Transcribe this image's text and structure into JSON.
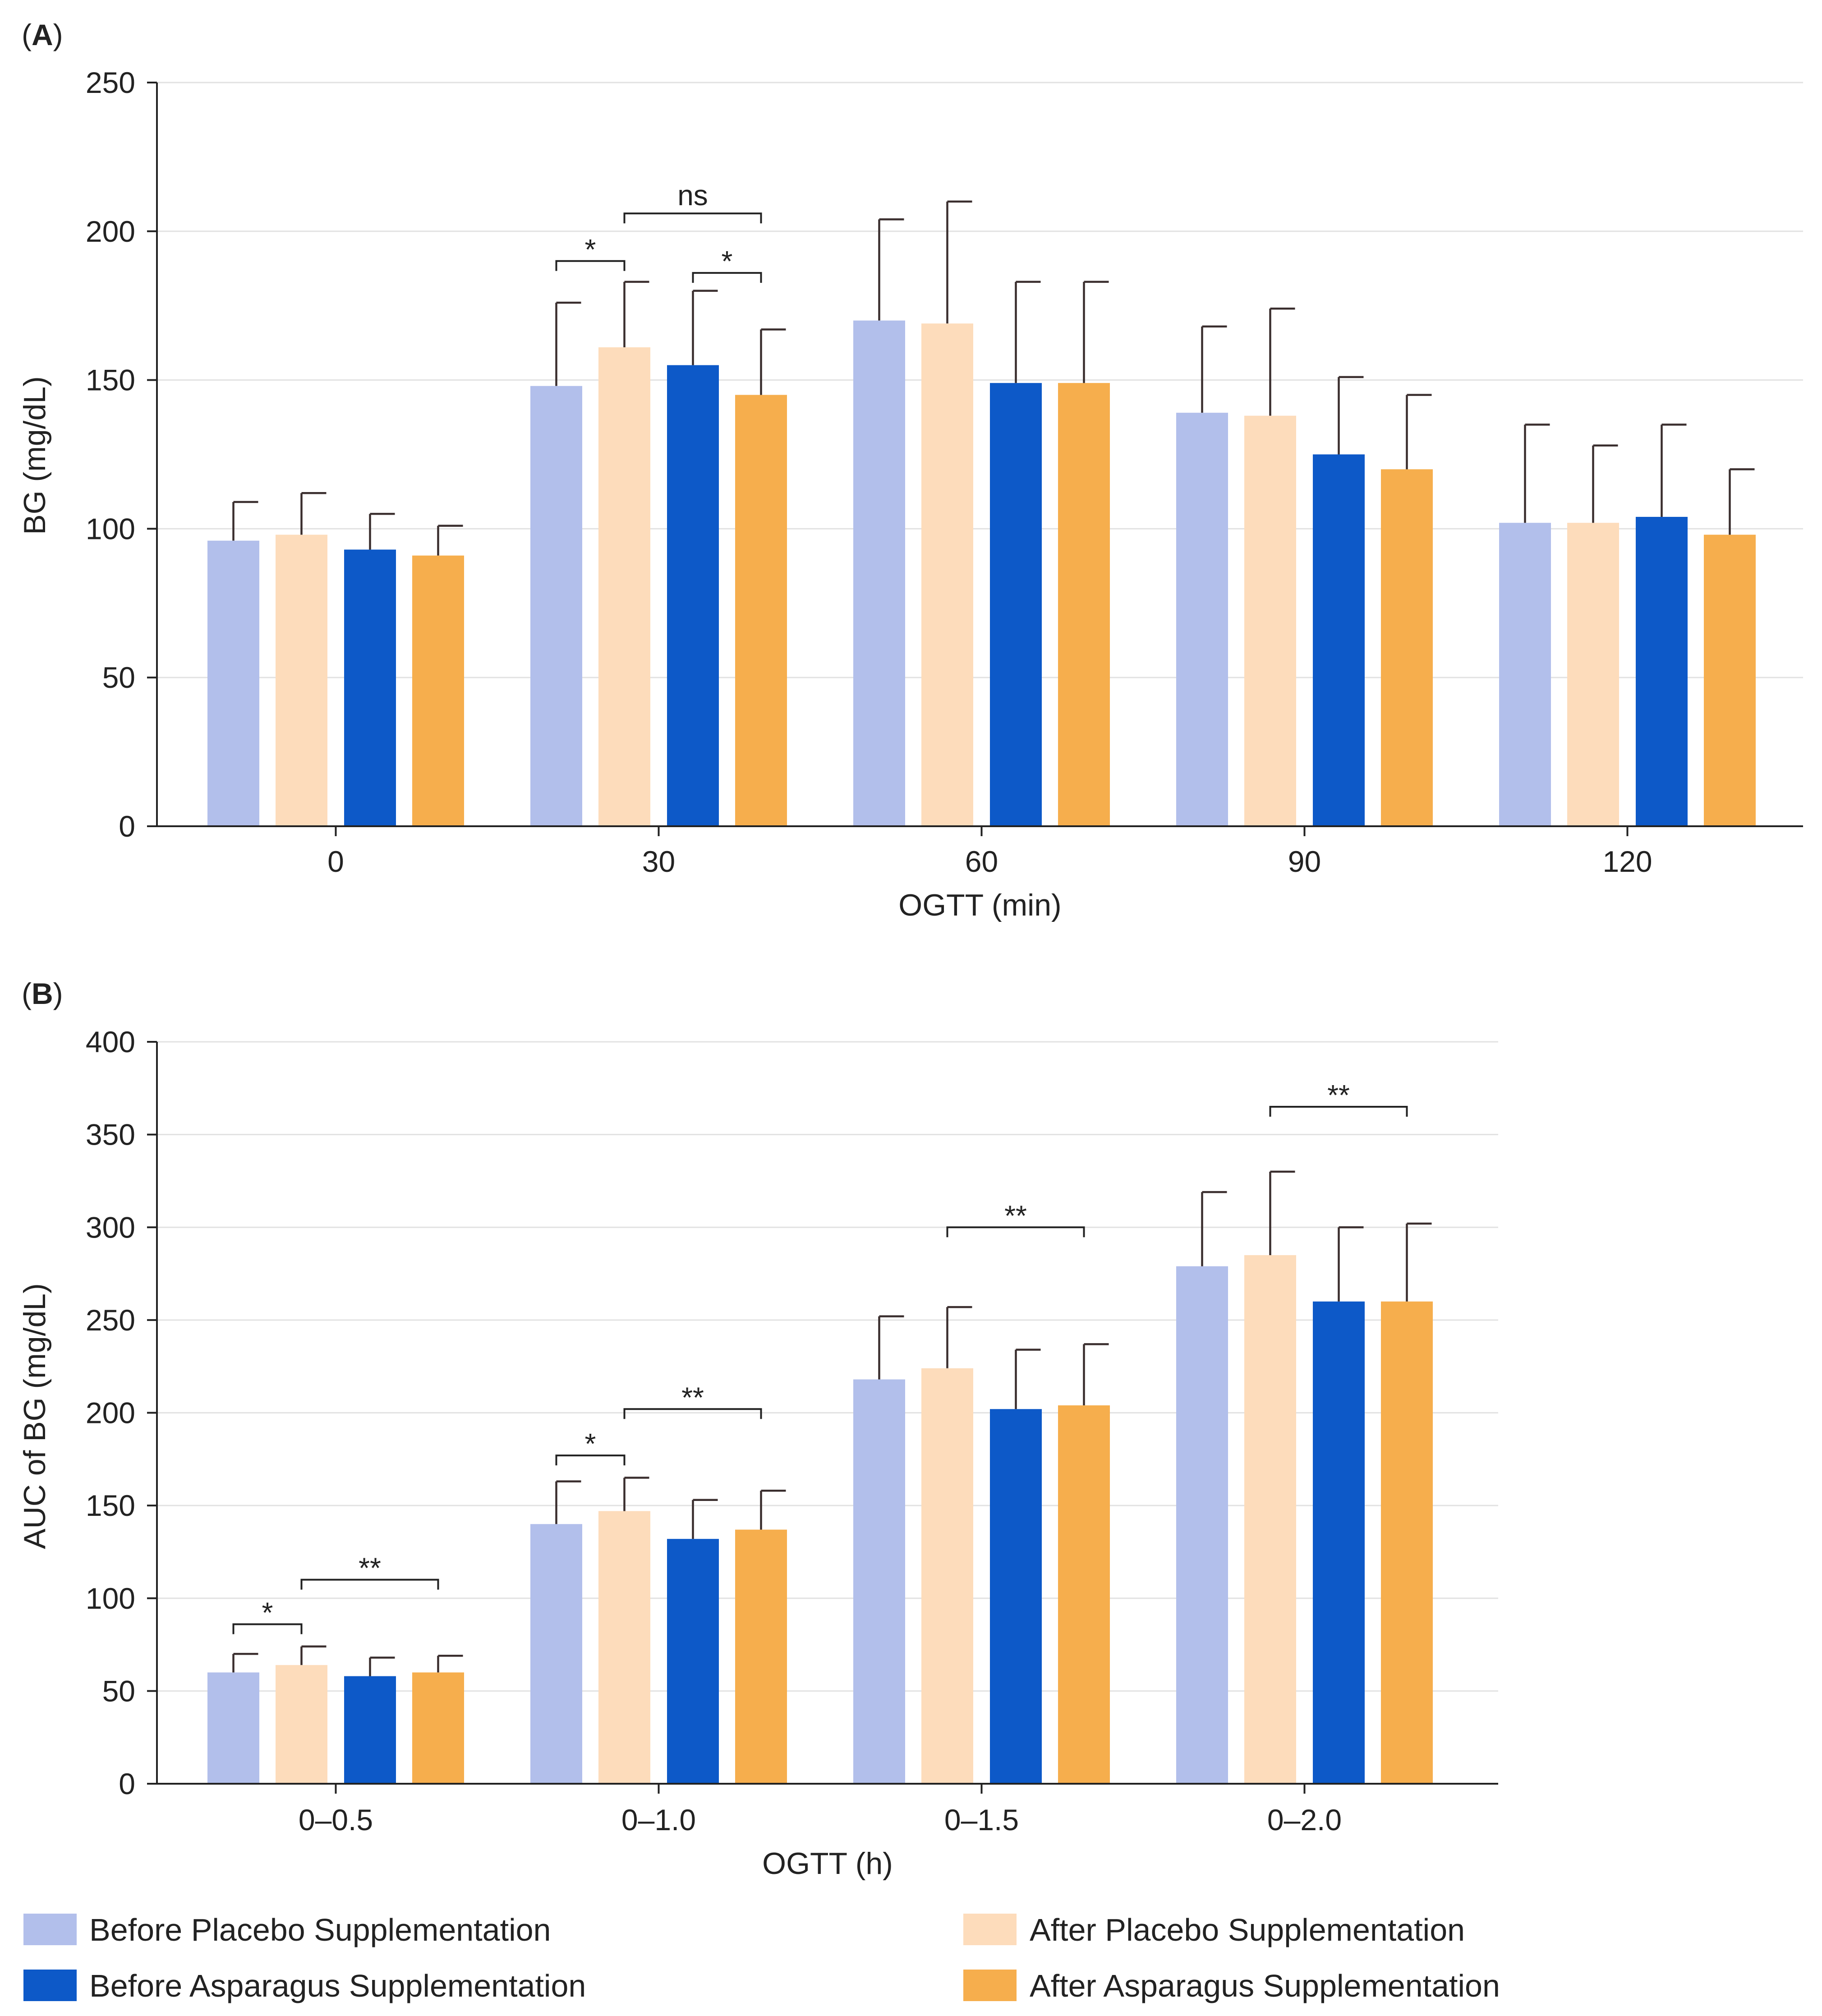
{
  "legend": {
    "items": [
      {
        "label": "Before Placebo Supplementation",
        "color": "#b2bfeb"
      },
      {
        "label": "After Placebo Supplementation",
        "color": "#fddcbb"
      },
      {
        "label": "Before Asparagus Supplementation",
        "color": "#0d59c8"
      },
      {
        "label": "After Asparagus Supplementation",
        "color": "#f6ae4d"
      }
    ]
  },
  "chart_data": [
    {
      "panel": "A",
      "type": "bar",
      "title": "",
      "xlabel": "OGTT (min)",
      "ylabel": "BG (mg/dL)",
      "ylim": [
        0,
        250
      ],
      "yticks": [
        0,
        50,
        100,
        150,
        200,
        250
      ],
      "grid": true,
      "categories": [
        "0",
        "30",
        "60",
        "90",
        "120"
      ],
      "series": [
        {
          "name": "Before Placebo Supplementation",
          "color": "#b2bfeb",
          "values": [
            96,
            148,
            170,
            139,
            102
          ],
          "errors": [
            13,
            28,
            34,
            29,
            33
          ]
        },
        {
          "name": "After Placebo Supplementation",
          "color": "#fddcbb",
          "values": [
            98,
            161,
            169,
            138,
            102
          ],
          "errors": [
            14,
            22,
            41,
            36,
            26
          ]
        },
        {
          "name": "Before Asparagus Supplementation",
          "color": "#0d59c8",
          "values": [
            93,
            155,
            149,
            125,
            104
          ],
          "errors": [
            12,
            25,
            34,
            26,
            31
          ]
        },
        {
          "name": "After Asparagus Supplementation",
          "color": "#f6ae4d",
          "values": [
            91,
            145,
            149,
            120,
            98
          ],
          "errors": [
            10,
            22,
            34,
            25,
            22
          ]
        }
      ],
      "annotations": [
        {
          "category": 1,
          "from_series": 0,
          "to_series": 1,
          "label": "*",
          "y": 190
        },
        {
          "category": 1,
          "from_series": 1,
          "to_series": 3,
          "label": "ns",
          "y": 206
        },
        {
          "category": 1,
          "from_series": 2,
          "to_series": 3,
          "label": "*",
          "y": 186
        }
      ]
    },
    {
      "panel": "B",
      "type": "bar",
      "title": "",
      "xlabel": "OGTT (h)",
      "ylabel": "AUC of BG (mg/dL)",
      "ylim": [
        0,
        400
      ],
      "yticks": [
        0,
        50,
        100,
        150,
        200,
        250,
        300,
        350,
        400
      ],
      "grid": true,
      "categories": [
        "0–0.5",
        "0–1.0",
        "0–1.5",
        "0–2.0"
      ],
      "series": [
        {
          "name": "Before Placebo Supplementation",
          "color": "#b2bfeb",
          "values": [
            60,
            140,
            218,
            279
          ],
          "errors": [
            10,
            23,
            34,
            40
          ]
        },
        {
          "name": "After Placebo Supplementation",
          "color": "#fddcbb",
          "values": [
            64,
            147,
            224,
            285
          ],
          "errors": [
            10,
            18,
            33,
            45
          ]
        },
        {
          "name": "Before Asparagus Supplementation",
          "color": "#0d59c8",
          "values": [
            58,
            132,
            202,
            260
          ],
          "errors": [
            10,
            21,
            32,
            40
          ]
        },
        {
          "name": "After Asparagus Supplementation",
          "color": "#f6ae4d",
          "values": [
            60,
            137,
            204,
            260
          ],
          "errors": [
            9,
            21,
            33,
            42
          ]
        }
      ],
      "annotations": [
        {
          "category": 0,
          "from_series": 0,
          "to_series": 1,
          "label": "*",
          "y": 86
        },
        {
          "category": 0,
          "from_series": 1,
          "to_series": 3,
          "label": "**",
          "y": 110
        },
        {
          "category": 1,
          "from_series": 0,
          "to_series": 1,
          "label": "*",
          "y": 177
        },
        {
          "category": 1,
          "from_series": 1,
          "to_series": 3,
          "label": "**",
          "y": 202
        },
        {
          "category": 2,
          "from_series": 1,
          "to_series": 3,
          "label": "**",
          "y": 300
        },
        {
          "category": 3,
          "from_series": 1,
          "to_series": 3,
          "label": "**",
          "y": 365
        }
      ]
    }
  ]
}
